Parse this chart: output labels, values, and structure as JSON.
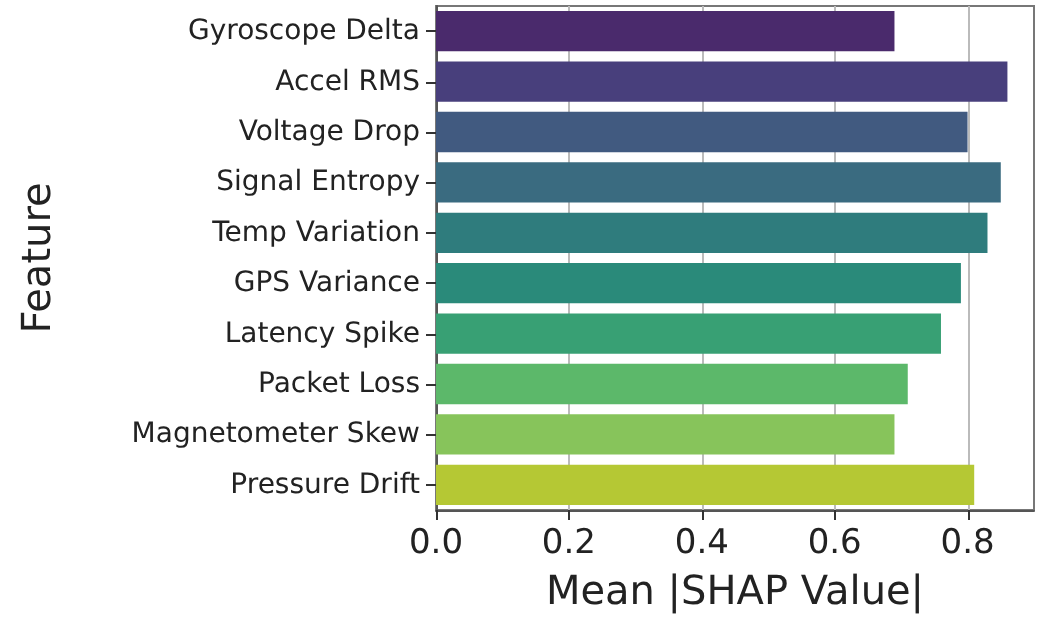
{
  "chart_data": {
    "type": "bar",
    "orientation": "horizontal",
    "xlabel": "Mean |SHAP Value|",
    "ylabel": "Feature",
    "categories": [
      "Gyroscope Delta",
      "Accel RMS",
      "Voltage Drop",
      "Signal Entropy",
      "Temp Variation",
      "GPS Variance",
      "Latency Spike",
      "Packet Loss",
      "Magnetometer Skew",
      "Pressure Drift"
    ],
    "values": [
      0.69,
      0.86,
      0.8,
      0.85,
      0.83,
      0.79,
      0.76,
      0.71,
      0.69,
      0.81
    ],
    "colors": [
      "#4a2a6c",
      "#483f7c",
      "#415a80",
      "#3a6b80",
      "#2f7c7d",
      "#2a8a7a",
      "#38a074",
      "#5cb86a",
      "#87c45b",
      "#b5c834"
    ],
    "xlim": [
      0,
      0.9
    ],
    "xticks": [
      {
        "value": 0,
        "label": "0.0"
      },
      {
        "value": 0.2,
        "label": "0.2"
      },
      {
        "value": 0.4,
        "label": "0.4"
      },
      {
        "value": 0.6,
        "label": "0.6"
      },
      {
        "value": 0.8,
        "label": "0.8"
      }
    ],
    "grid": "x"
  }
}
